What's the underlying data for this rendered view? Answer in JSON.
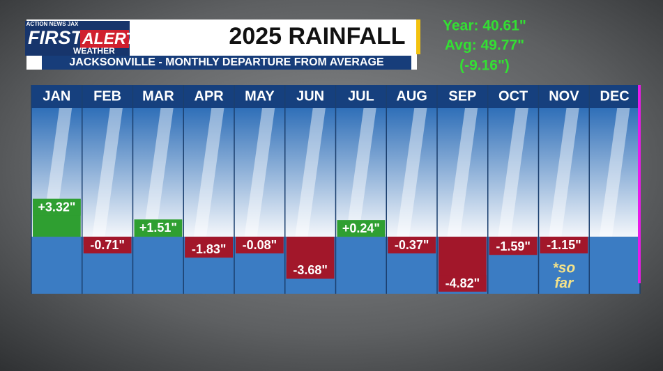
{
  "brand": {
    "top": "ACTION NEWS JAX",
    "first": "FIRST",
    "alert": "ALERT",
    "weather": "WEATHER"
  },
  "chart_data": {
    "type": "bar",
    "title": "2025 RAINFALL",
    "subtitle": "JACKSONVILLE - MONTHLY DEPARTURE FROM AVERAGE",
    "categories": [
      "JAN",
      "FEB",
      "MAR",
      "APR",
      "MAY",
      "JUN",
      "JUL",
      "AUG",
      "SEP",
      "OCT",
      "NOV",
      "DEC"
    ],
    "values": [
      3.32,
      -0.71,
      1.51,
      -1.83,
      -0.08,
      -3.68,
      0.24,
      -0.37,
      -4.82,
      -1.59,
      -1.15,
      null
    ],
    "value_labels": [
      "+3.32\"",
      "-0.71\"",
      "+1.51\"",
      "-1.83\"",
      "-0.08\"",
      "-3.68\"",
      "+0.24\"",
      "-0.37\"",
      "-4.82\"",
      "-1.59\"",
      "-1.15\"",
      null
    ],
    "colors": {
      "positive": "#2f9f31",
      "negative": "#a2172a"
    },
    "ylim": [
      -5,
      11.3
    ],
    "annotations": [
      "Year: 40.61\"",
      "Avg: 49.77\"",
      "(-9.16\")",
      "*so",
      "far"
    ]
  }
}
